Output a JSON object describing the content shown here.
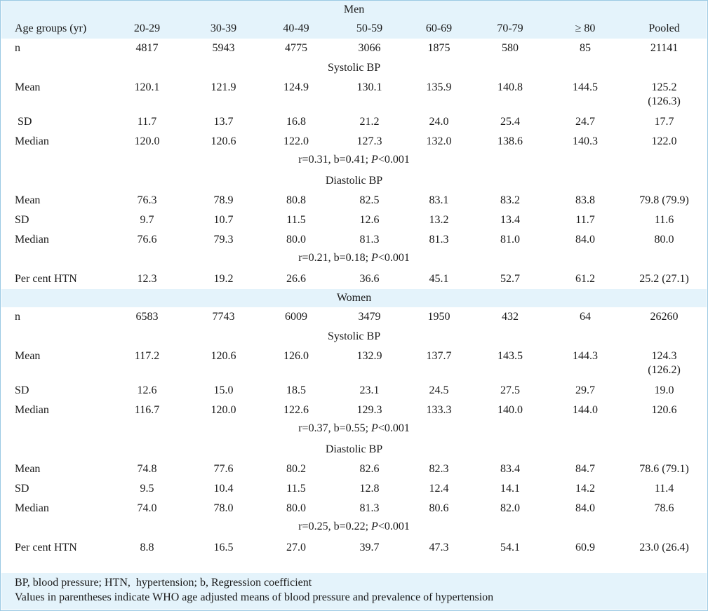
{
  "table": {
    "columns": [
      "Age groups (yr)",
      "20-29",
      "30-39",
      "40-49",
      "50-59",
      "60-69",
      "70-79",
      "≥ 80",
      "Pooled"
    ],
    "men": {
      "title": "Men",
      "n": [
        "n",
        "4817",
        "5943",
        "4775",
        "3066",
        "1875",
        "580",
        "85",
        "21141"
      ],
      "systolic_title": "Systolic BP",
      "systolic_mean": [
        "Mean",
        "120.1",
        "121.9",
        "124.9",
        "130.1",
        "135.9",
        "140.8",
        "144.5",
        "125.2",
        "(126.3)"
      ],
      "systolic_sd": [
        " SD",
        "11.7",
        "13.7",
        "16.8",
        "21.2",
        "24.0",
        "25.4",
        "24.7",
        "17.7"
      ],
      "systolic_median": [
        "Median",
        "120.0",
        "120.6",
        "122.0",
        "127.3",
        "132.0",
        "138.6",
        "140.3",
        "122.0"
      ],
      "systolic_stat": [
        "r=0.31, b=0.41; ",
        "P",
        "<0.001"
      ],
      "diastolic_title": "Diastolic BP",
      "diastolic_mean": [
        "Mean",
        "76.3",
        "78.9",
        "80.8",
        "82.5",
        "83.1",
        "83.2",
        "83.8",
        "79.8 (79.9)"
      ],
      "diastolic_sd": [
        "SD",
        "9.7",
        "10.7",
        "11.5",
        "12.6",
        "13.2",
        "13.4",
        "11.7",
        "11.6"
      ],
      "diastolic_median": [
        "Median",
        "76.6",
        "79.3",
        "80.0",
        "81.3",
        "81.3",
        "81.0",
        "84.0",
        "80.0"
      ],
      "diastolic_stat": [
        "r=0.21, b=0.18; ",
        "P",
        "<0.001"
      ],
      "htn": [
        "Per cent HTN",
        "12.3",
        "19.2",
        "26.6",
        "36.6",
        "45.1",
        "52.7",
        "61.2",
        "25.2 (27.1)"
      ]
    },
    "women": {
      "title": "Women",
      "n": [
        "n",
        "6583",
        "7743",
        "6009",
        "3479",
        "1950",
        "432",
        "64",
        "26260"
      ],
      "systolic_title": "Systolic BP",
      "systolic_mean": [
        "Mean",
        "117.2",
        "120.6",
        "126.0",
        "132.9",
        "137.7",
        "143.5",
        "144.3",
        "124.3",
        "(126.2)"
      ],
      "systolic_sd": [
        "SD",
        "12.6",
        "15.0",
        "18.5",
        "23.1",
        "24.5",
        "27.5",
        "29.7",
        "19.0"
      ],
      "systolic_median": [
        "Median",
        "116.7",
        "120.0",
        "122.6",
        "129.3",
        "133.3",
        "140.0",
        "144.0",
        "120.6"
      ],
      "systolic_stat": [
        "r=0.37, b=0.55; ",
        "P",
        "<0.001"
      ],
      "diastolic_title": "Diastolic BP",
      "diastolic_mean": [
        "Mean",
        "74.8",
        "77.6",
        "80.2",
        "82.6",
        "82.3",
        "83.4",
        "84.7",
        "78.6 (79.1)"
      ],
      "diastolic_sd": [
        "SD",
        "9.5",
        "10.4",
        "11.5",
        "12.8",
        "12.4",
        "14.1",
        "14.2",
        "11.4"
      ],
      "diastolic_median": [
        "Median",
        "74.0",
        "78.0",
        "80.0",
        "81.3",
        "80.6",
        "82.0",
        "84.0",
        "78.6"
      ],
      "diastolic_stat": [
        "r=0.25, b=0.22; ",
        "P",
        "<0.001"
      ],
      "htn": [
        "Per cent HTN",
        "8.8",
        "16.5",
        "27.0",
        "39.7",
        "47.3",
        "54.1",
        "60.9",
        "23.0 (26.4)"
      ]
    }
  },
  "footnotes": [
    "BP, blood pressure; HTN,  hypertension; b, Regression coefficient",
    "Values in parentheses indicate WHO age adjusted means of blood pressure and prevalence of hypertension"
  ],
  "colors": {
    "shade": "#e4f3fb",
    "border": "#9ac9e3"
  }
}
